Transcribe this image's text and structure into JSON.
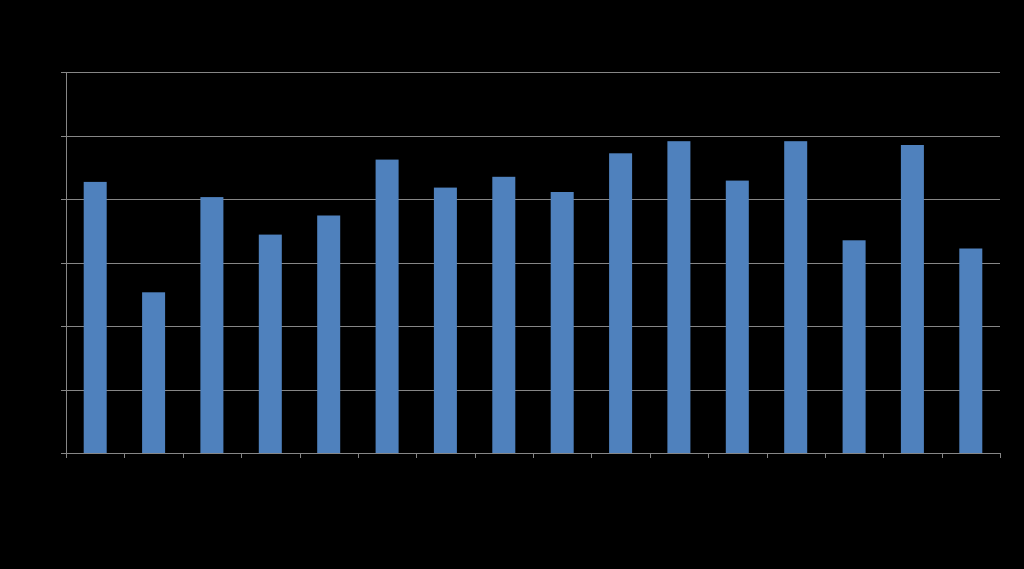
{
  "chart_data": {
    "type": "bar",
    "categories": [
      "",
      "",
      "",
      "",
      "",
      "",
      "",
      "",
      "",
      "",
      "",
      "",
      "",
      "",
      "",
      ""
    ],
    "values": [
      4.27,
      2.53,
      4.03,
      3.44,
      3.74,
      4.62,
      4.18,
      4.35,
      4.11,
      4.72,
      4.91,
      4.29,
      4.91,
      3.35,
      4.85,
      3.22
    ],
    "title": "",
    "xlabel": "",
    "ylabel": "",
    "ylim": [
      0,
      6
    ],
    "grid": true,
    "legend": "none",
    "colors": {
      "bar": "#4f81bd",
      "grid": "#868686",
      "axis": "#868686",
      "background": "#000000"
    }
  }
}
